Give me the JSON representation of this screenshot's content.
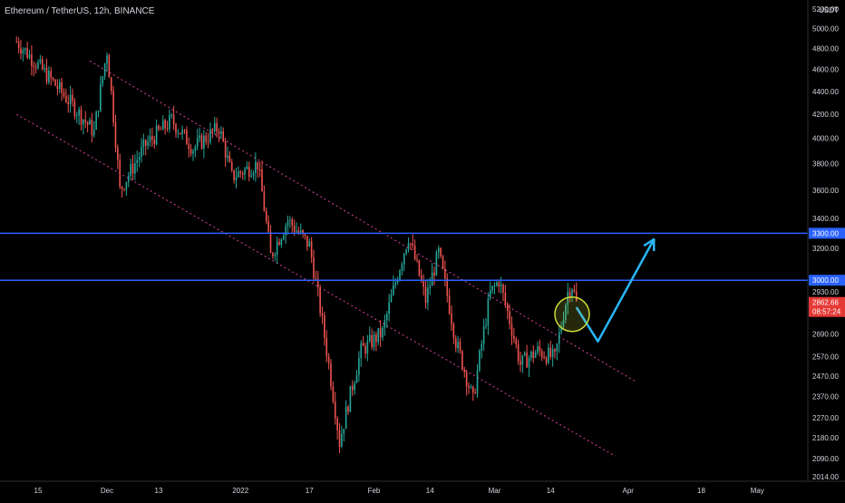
{
  "header": {
    "symbol_title": "Ethereum / TetherUS, 12h, BINANCE",
    "currency": "USDT"
  },
  "colors": {
    "background": "#000000",
    "up_candle": "#26a69a",
    "down_candle": "#ef5350",
    "axis_text": "#d1d4dc",
    "level_line": "#2962ff",
    "channel_line": "#e040a0",
    "projection_arrow": "#29b6f6",
    "highlight_circle": "#cddc39",
    "price_badge": "#e53935"
  },
  "chart_data": {
    "type": "candlestick",
    "title": "Ethereum / TetherUS, 12h, BINANCE",
    "ylabel": "USDT",
    "y_scale": "log",
    "ylim": [
      2014.0,
      5200.0
    ],
    "y_tick_labels": [
      "5200.00",
      "5000.00",
      "4800.00",
      "4600.00",
      "4400.00",
      "4200.00",
      "4000.00",
      "3800.00",
      "3600.00",
      "3400.00",
      "3200.00",
      "2930.00",
      "2690.00",
      "2570.00",
      "2470.00",
      "2370.00",
      "2270.00",
      "2180.00",
      "2090.00",
      "2014.00"
    ],
    "x_tick_labels": [
      "15",
      "Dec",
      "13",
      "2022",
      "17",
      "Feb",
      "14",
      "Mar",
      "14",
      "Apr",
      "18",
      "May"
    ],
    "x_tick_dates": [
      "2021-11-15",
      "2021-12-01",
      "2021-12-13",
      "2022-01-01",
      "2022-01-17",
      "2022-02-01",
      "2022-02-14",
      "2022-03-01",
      "2022-03-14",
      "2022-04-01",
      "2022-04-18",
      "2022-05-01"
    ],
    "key_prices": [
      {
        "date": "2021-11-10",
        "price": 4868
      },
      {
        "date": "2021-11-28",
        "price": 4050
      },
      {
        "date": "2021-12-01",
        "price": 4780
      },
      {
        "date": "2021-12-04",
        "price": 3600
      },
      {
        "date": "2021-12-10",
        "price": 3950
      },
      {
        "date": "2021-12-16",
        "price": 4150
      },
      {
        "date": "2021-12-21",
        "price": 3920
      },
      {
        "date": "2021-12-27",
        "price": 4090
      },
      {
        "date": "2021-12-30",
        "price": 3700
      },
      {
        "date": "2022-01-05",
        "price": 3800
      },
      {
        "date": "2022-01-08",
        "price": 3150
      },
      {
        "date": "2022-01-12",
        "price": 3390
      },
      {
        "date": "2022-01-17",
        "price": 3220
      },
      {
        "date": "2022-01-21",
        "price": 2600
      },
      {
        "date": "2022-01-24",
        "price": 2160
      },
      {
        "date": "2022-01-29",
        "price": 2600
      },
      {
        "date": "2022-02-03",
        "price": 2700
      },
      {
        "date": "2022-02-09",
        "price": 3280
      },
      {
        "date": "2022-02-13",
        "price": 2880
      },
      {
        "date": "2022-02-16",
        "price": 3170
      },
      {
        "date": "2022-02-20",
        "price": 2650
      },
      {
        "date": "2022-02-24",
        "price": 2350
      },
      {
        "date": "2022-02-28",
        "price": 2920
      },
      {
        "date": "2022-03-02",
        "price": 3000
      },
      {
        "date": "2022-03-07",
        "price": 2530
      },
      {
        "date": "2022-03-11",
        "price": 2600
      },
      {
        "date": "2022-03-15",
        "price": 2560
      },
      {
        "date": "2022-03-18",
        "price": 2930
      },
      {
        "date": "2022-03-19",
        "price": 2970
      },
      {
        "date": "2022-03-20",
        "price": 2863
      }
    ],
    "horizontal_levels": [
      {
        "label": "3300.00",
        "price": 3300.0
      },
      {
        "label": "3000.00",
        "price": 3000.0
      }
    ],
    "last_price": {
      "label": "2862.66",
      "countdown": "08:57:24",
      "price": 2862.66
    },
    "annotations": {
      "channel_upper": [
        {
          "date": "2021-11-27",
          "price": 4680
        },
        {
          "date": "2022-04-03",
          "price": 2440
        }
      ],
      "channel_lower": [
        {
          "date": "2021-11-10",
          "price": 4200
        },
        {
          "date": "2022-03-29",
          "price": 2100
        }
      ],
      "projection_path": [
        {
          "date": "2022-03-20",
          "price": 2840
        },
        {
          "date": "2022-03-25",
          "price": 2650
        },
        {
          "date": "2022-04-07",
          "price": 3260
        }
      ],
      "highlight": {
        "date": "2022-03-19",
        "price": 2800
      }
    },
    "grid": false,
    "legend": "none"
  }
}
